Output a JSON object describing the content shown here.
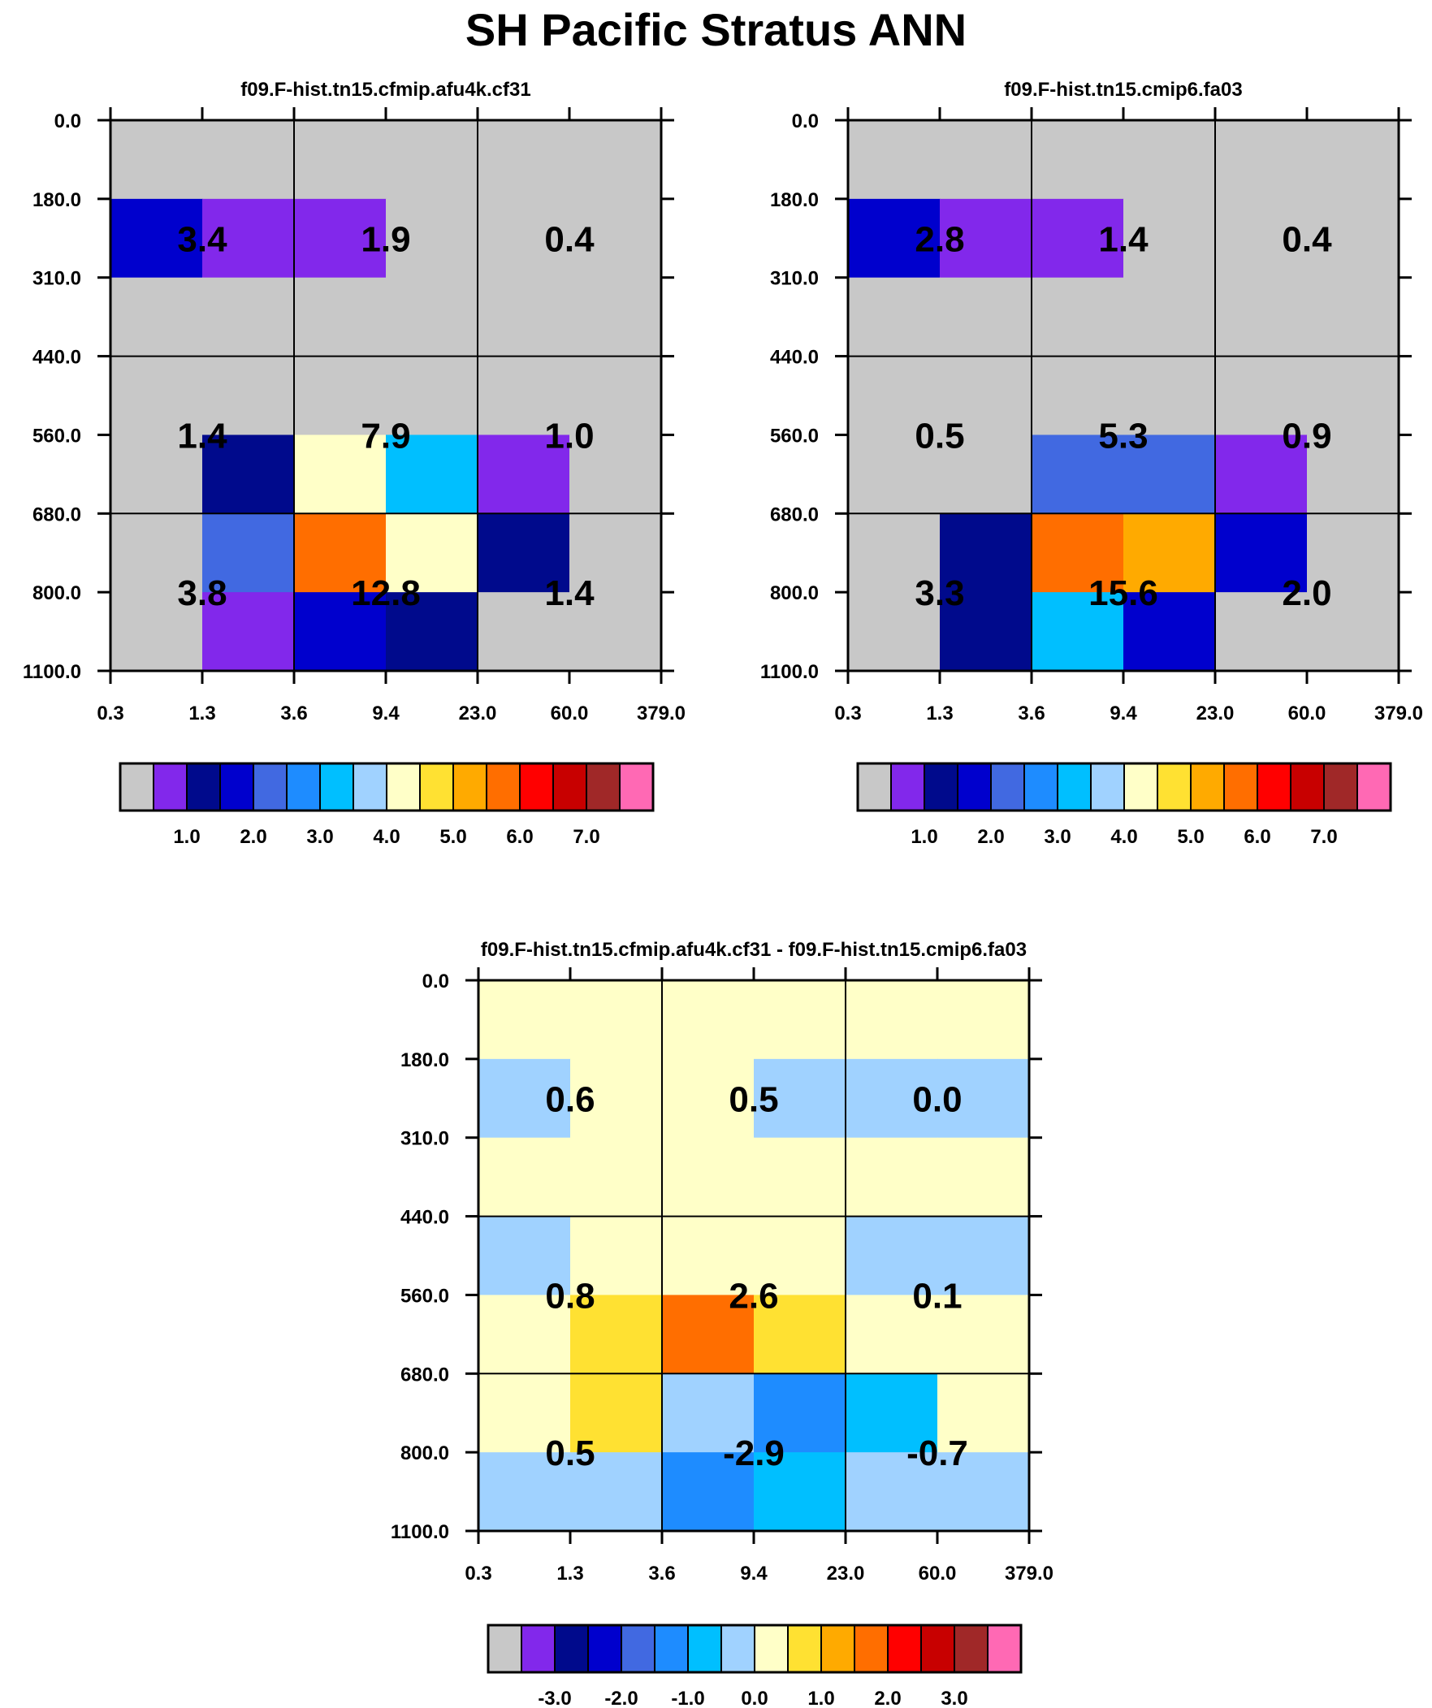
{
  "title": "SH Pacific Stratus ANN",
  "palette": [
    "#c8c8c8",
    "#8228eb",
    "#000a8c",
    "#0000cd",
    "#4169e1",
    "#1e8cff",
    "#00bfff",
    "#a0d2ff",
    "#ffffc8",
    "#ffe132",
    "#ffaa00",
    "#ff6e00",
    "#ff0000",
    "#c80000",
    "#a02828",
    "#ff69b4"
  ],
  "chart_data": [
    {
      "type": "heatmap",
      "title": "f09.F-hist.tn15.cfmip.afu4k.cf31",
      "x_ticks": [
        "0.3",
        "1.3",
        "3.6",
        "9.4",
        "23.0",
        "60.0",
        "379.0"
      ],
      "y_ticks": [
        "0.0",
        "180.0",
        "310.0",
        "440.0",
        "560.0",
        "680.0",
        "800.0",
        "1100.0"
      ],
      "cell_color_index": [
        [
          0,
          0,
          0,
          0,
          0,
          0
        ],
        [
          3,
          1,
          1,
          0,
          0,
          0
        ],
        [
          0,
          0,
          0,
          0,
          0,
          0
        ],
        [
          0,
          0,
          0,
          0,
          0,
          0
        ],
        [
          0,
          2,
          8,
          6,
          1,
          0
        ],
        [
          0,
          4,
          11,
          8,
          2,
          0
        ],
        [
          0,
          1,
          3,
          2,
          0,
          0
        ]
      ],
      "group_values": [
        [
          "3.4",
          "1.9",
          "0.4"
        ],
        [
          "1.4",
          "7.9",
          "1.0"
        ],
        [
          "3.8",
          "12.8",
          "1.4"
        ]
      ],
      "colorbar_labels": [
        "1.0",
        "2.0",
        "3.0",
        "4.0",
        "5.0",
        "6.0",
        "7.0"
      ]
    },
    {
      "type": "heatmap",
      "title": "f09.F-hist.tn15.cmip6.fa03",
      "x_ticks": [
        "0.3",
        "1.3",
        "3.6",
        "9.4",
        "23.0",
        "60.0",
        "379.0"
      ],
      "y_ticks": [
        "0.0",
        "180.0",
        "310.0",
        "440.0",
        "560.0",
        "680.0",
        "800.0",
        "1100.0"
      ],
      "cell_color_index": [
        [
          0,
          0,
          0,
          0,
          0,
          0
        ],
        [
          3,
          1,
          1,
          0,
          0,
          0
        ],
        [
          0,
          0,
          0,
          0,
          0,
          0
        ],
        [
          0,
          0,
          0,
          0,
          0,
          0
        ],
        [
          0,
          0,
          4,
          4,
          1,
          0
        ],
        [
          0,
          2,
          11,
          10,
          3,
          0
        ],
        [
          0,
          2,
          6,
          3,
          0,
          0
        ]
      ],
      "group_values": [
        [
          "2.8",
          "1.4",
          "0.4"
        ],
        [
          "0.5",
          "5.3",
          "0.9"
        ],
        [
          "3.3",
          "15.6",
          "2.0"
        ]
      ],
      "colorbar_labels": [
        "1.0",
        "2.0",
        "3.0",
        "4.0",
        "5.0",
        "6.0",
        "7.0"
      ]
    },
    {
      "type": "heatmap",
      "title": "f09.F-hist.tn15.cfmip.afu4k.cf31 - f09.F-hist.tn15.cmip6.fa03",
      "x_ticks": [
        "0.3",
        "1.3",
        "3.6",
        "9.4",
        "23.0",
        "60.0",
        "379.0"
      ],
      "y_ticks": [
        "0.0",
        "180.0",
        "310.0",
        "440.0",
        "560.0",
        "680.0",
        "800.0",
        "1100.0"
      ],
      "cell_color_index": [
        [
          8,
          8,
          8,
          8,
          8,
          8
        ],
        [
          7,
          8,
          8,
          7,
          7,
          7
        ],
        [
          8,
          8,
          8,
          8,
          8,
          8
        ],
        [
          7,
          8,
          8,
          8,
          7,
          7
        ],
        [
          8,
          9,
          11,
          9,
          8,
          8
        ],
        [
          8,
          9,
          7,
          5,
          6,
          8
        ],
        [
          7,
          7,
          5,
          6,
          7,
          7
        ]
      ],
      "group_values": [
        [
          "0.6",
          "0.5",
          "0.0"
        ],
        [
          "0.8",
          "2.6",
          "0.1"
        ],
        [
          "0.5",
          "-2.9",
          "-0.7"
        ]
      ],
      "colorbar_labels": [
        "-3.0",
        "-2.0",
        "-1.0",
        "0.0",
        "1.0",
        "2.0",
        "3.0"
      ]
    }
  ]
}
